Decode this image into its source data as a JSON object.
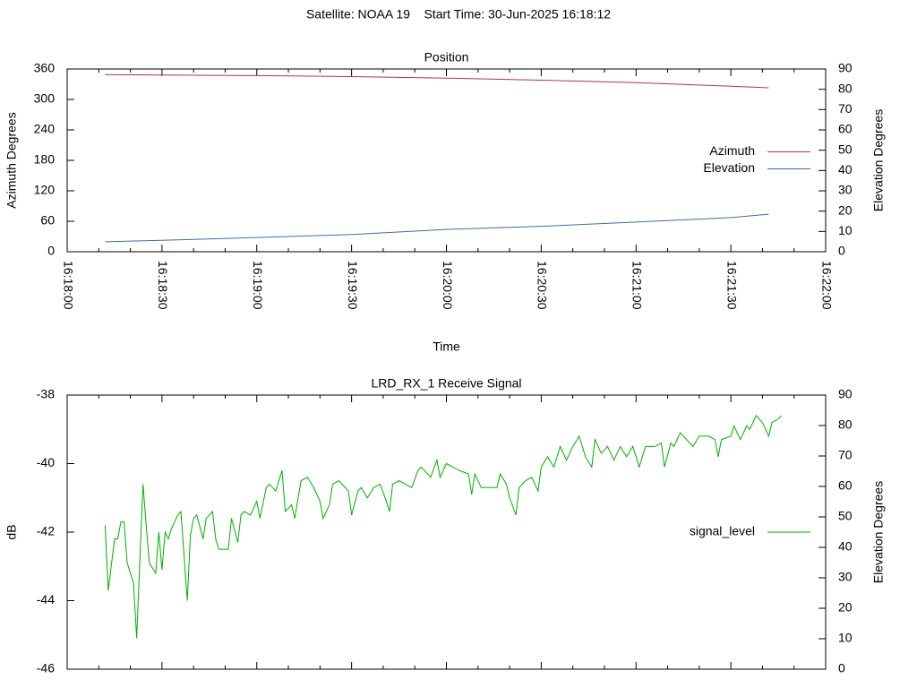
{
  "title": "Satellite: NOAA 19    Start Time: 30-Jun-2025 16:18:12",
  "chart_data": [
    {
      "type": "line",
      "title": "Position",
      "xlabel": "Time",
      "ylabel": "Azimuth Degrees",
      "y2label": "Elevation Degrees",
      "x": [
        "16:18:12",
        "16:18:30",
        "16:19:00",
        "16:19:30",
        "16:20:00",
        "16:20:30",
        "16:21:00",
        "16:21:30",
        "16:21:42"
      ],
      "xlim": [
        "16:18:00",
        "16:22:00"
      ],
      "xticks": [
        "16:18:00",
        "16:18:30",
        "16:19:00",
        "16:19:30",
        "16:20:00",
        "16:20:30",
        "16:21:00",
        "16:21:30",
        "16:22:00"
      ],
      "mxtics": 3,
      "ylim": [
        0,
        360
      ],
      "yticks": [
        0,
        60,
        120,
        180,
        240,
        300,
        360
      ],
      "y2lim": [
        0,
        90
      ],
      "y2ticks": [
        0,
        10,
        20,
        30,
        40,
        50,
        60,
        70,
        80,
        90
      ],
      "legend": "right",
      "series": [
        {
          "name": "Azimuth",
          "color": "#b03a3a",
          "values": [
            349,
            348,
            347,
            345,
            342,
            338,
            333,
            326,
            323
          ]
        },
        {
          "name": "Elevation",
          "color": "#3b6ea5",
          "axis": "y2",
          "values": [
            4.9,
            5.6,
            7,
            8.5,
            11,
            12.5,
            14.6,
            16.8,
            18.5
          ]
        }
      ]
    },
    {
      "type": "line",
      "title": "LRD_RX_1 Receive Signal",
      "ylabel": "dB",
      "y2label": "Elevation Degrees",
      "x": [
        "16:18:12",
        "16:18:13",
        "16:18:15",
        "16:18:16",
        "16:18:17",
        "16:18:18",
        "16:18:19",
        "16:18:21",
        "16:18:22",
        "16:18:23",
        "16:18:24",
        "16:18:25",
        "16:18:26",
        "16:18:28",
        "16:18:29",
        "16:18:30",
        "16:18:31",
        "16:18:32",
        "16:18:33",
        "16:18:35",
        "16:18:36",
        "16:18:38",
        "16:18:39",
        "16:18:40",
        "16:18:41",
        "16:18:43",
        "16:18:44",
        "16:18:46",
        "16:18:47",
        "16:18:48",
        "16:18:51",
        "16:18:52",
        "16:18:54",
        "16:18:55",
        "16:18:56",
        "16:18:58",
        "16:19:00",
        "16:19:01",
        "16:19:03",
        "16:19:04",
        "16:19:06",
        "16:19:08",
        "16:19:09",
        "16:19:11",
        "16:19:12",
        "16:19:14",
        "16:19:16",
        "16:19:18",
        "16:19:20",
        "16:19:21",
        "16:19:23",
        "16:19:24",
        "16:19:26",
        "16:19:29",
        "16:19:30",
        "16:19:32",
        "16:19:33",
        "16:19:35",
        "16:19:37",
        "16:19:39",
        "16:19:41",
        "16:19:42",
        "16:19:43",
        "16:19:45",
        "16:19:47",
        "16:19:49",
        "16:19:51",
        "16:19:52",
        "16:19:54",
        "16:19:55",
        "16:19:57",
        "16:19:58",
        "16:20:00",
        "16:20:02",
        "16:20:04",
        "16:20:07",
        "16:20:08",
        "16:20:09",
        "16:20:11",
        "16:20:13",
        "16:20:16",
        "16:20:17",
        "16:20:19",
        "16:20:20",
        "16:20:22",
        "16:20:23",
        "16:20:25",
        "16:20:27",
        "16:20:29",
        "16:20:30",
        "16:20:32",
        "16:20:34",
        "16:20:36",
        "16:20:38",
        "16:20:40",
        "16:20:42",
        "16:20:44",
        "16:20:46",
        "16:20:47",
        "16:20:49",
        "16:20:51",
        "16:20:53",
        "16:20:55",
        "16:20:57",
        "16:20:59",
        "16:21:01",
        "16:21:03",
        "16:21:06",
        "16:21:08",
        "16:21:09",
        "16:21:11",
        "16:21:12",
        "16:21:14",
        "16:21:16",
        "16:21:18",
        "16:21:20",
        "16:21:23",
        "16:21:25",
        "16:21:26",
        "16:21:27",
        "16:21:30",
        "16:21:31",
        "16:21:33",
        "16:21:35",
        "16:21:36",
        "16:21:38",
        "16:21:40",
        "16:21:42",
        "16:21:43",
        "16:21:45",
        "16:21:46"
      ],
      "xlim": [
        "16:18:00",
        "16:22:00"
      ],
      "xticks": [
        "16:18:00",
        "16:18:30",
        "16:19:00",
        "16:19:30",
        "16:20:00",
        "16:20:30",
        "16:21:00",
        "16:21:30",
        "16:22:00"
      ],
      "xtick_labels": false,
      "mxtics": 3,
      "ylim": [
        -46,
        -38
      ],
      "yticks": [
        -46,
        -44,
        -42,
        -40,
        -38
      ],
      "y2lim": [
        0,
        90
      ],
      "y2ticks": [
        0,
        10,
        20,
        30,
        40,
        50,
        60,
        70,
        80,
        90
      ],
      "legend": "right",
      "series": [
        {
          "name": "signal_level",
          "color": "#00b000",
          "values": [
            -41.8,
            -43.7,
            -42.2,
            -42.2,
            -41.7,
            -41.7,
            -42.9,
            -43.5,
            -45.1,
            -42.8,
            -40.6,
            -41.8,
            -42.9,
            -43.2,
            -42.0,
            -43.1,
            -42.0,
            -42.2,
            -41.9,
            -41.5,
            -41.4,
            -44.0,
            -42.1,
            -41.6,
            -41.5,
            -42.2,
            -41.6,
            -41.4,
            -42.2,
            -42.5,
            -42.5,
            -41.6,
            -42.3,
            -41.5,
            -41.4,
            -41.5,
            -41.1,
            -41.6,
            -40.7,
            -40.6,
            -40.8,
            -40.2,
            -41.4,
            -41.2,
            -41.6,
            -40.5,
            -40.4,
            -40.7,
            -41.1,
            -41.6,
            -41.2,
            -40.6,
            -40.5,
            -40.8,
            -41.5,
            -40.8,
            -40.7,
            -41.0,
            -40.7,
            -40.6,
            -41.1,
            -41.4,
            -40.6,
            -40.5,
            -40.6,
            -40.7,
            -40.2,
            -40.1,
            -40.3,
            -40.4,
            -39.9,
            -40.4,
            -40.0,
            -40.1,
            -40.2,
            -40.3,
            -40.9,
            -40.3,
            -40.7,
            -40.7,
            -40.7,
            -40.3,
            -40.6,
            -41.0,
            -41.5,
            -40.7,
            -40.5,
            -40.4,
            -40.8,
            -40.1,
            -39.8,
            -40.1,
            -39.5,
            -39.9,
            -39.5,
            -39.2,
            -39.8,
            -40.1,
            -39.3,
            -39.7,
            -39.5,
            -39.9,
            -39.5,
            -39.8,
            -39.5,
            -40.1,
            -39.5,
            -39.5,
            -39.4,
            -40.1,
            -39.4,
            -39.5,
            -39.1,
            -39.3,
            -39.5,
            -39.2,
            -39.2,
            -39.3,
            -39.8,
            -39.3,
            -39.2,
            -38.9,
            -39.3,
            -38.9,
            -39.0,
            -38.6,
            -38.8,
            -39.2,
            -38.8,
            -38.7,
            -38.6
          ]
        }
      ]
    }
  ]
}
